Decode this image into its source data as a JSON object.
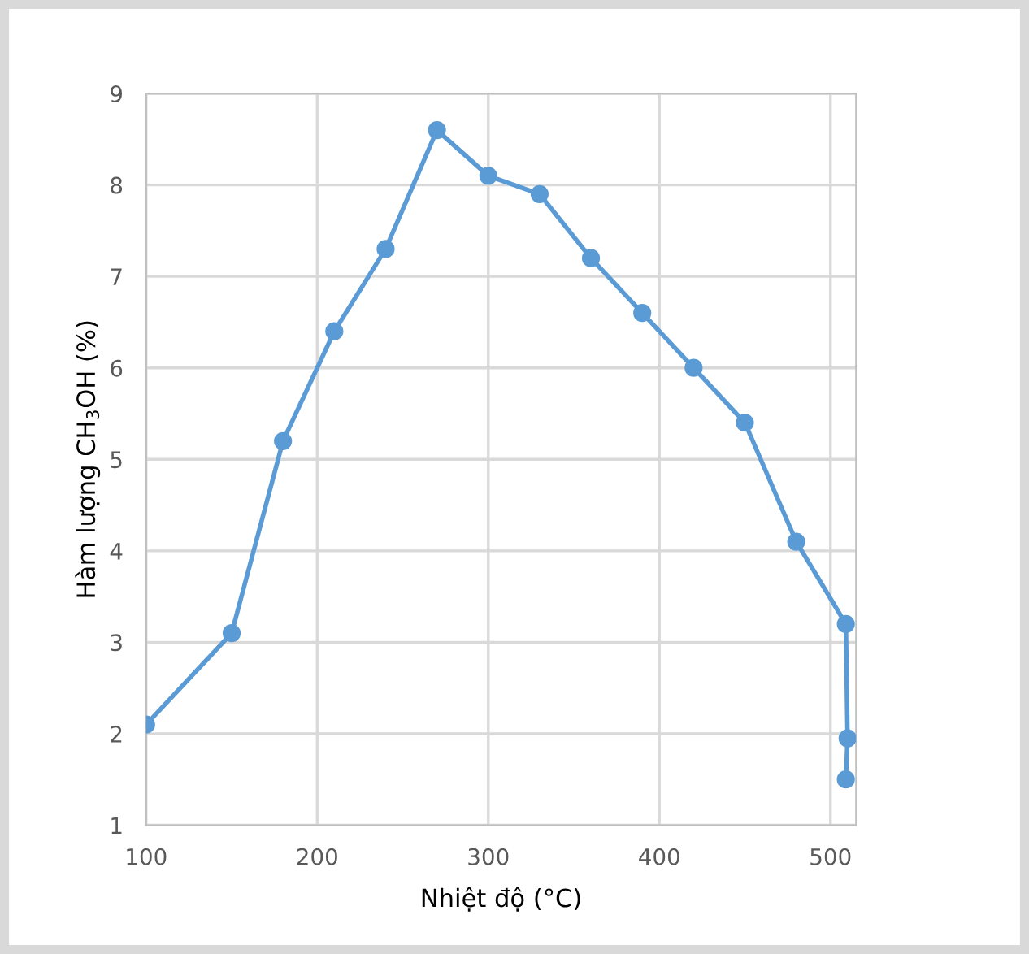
{
  "chart_data": {
    "type": "line",
    "xlabel": "Nhiệt độ (°C)",
    "ylabel": "Hàm lượng CH$_{3}$OH (%)",
    "x": [
      100,
      150,
      180,
      210,
      240,
      270,
      300,
      330,
      360,
      390,
      420,
      450,
      480,
      509,
      510,
      509
    ],
    "series": [
      {
        "color": "#5b9bd5",
        "values": [
          2.1,
          3.1,
          5.2,
          6.4,
          7.3,
          8.6,
          8.1,
          7.9,
          7.2,
          6.6,
          6.0,
          5.4,
          4.1,
          3.2,
          1.95,
          1.5
        ]
      }
    ],
    "xlim": [
      100,
      515
    ],
    "ylim": [
      1,
      9
    ],
    "xticks": [
      100,
      200,
      300,
      400,
      500
    ],
    "yticks": [
      1,
      2,
      3,
      4,
      5,
      6,
      7,
      8,
      9
    ],
    "grid": true,
    "marker": "circle",
    "line_style": "solid"
  }
}
